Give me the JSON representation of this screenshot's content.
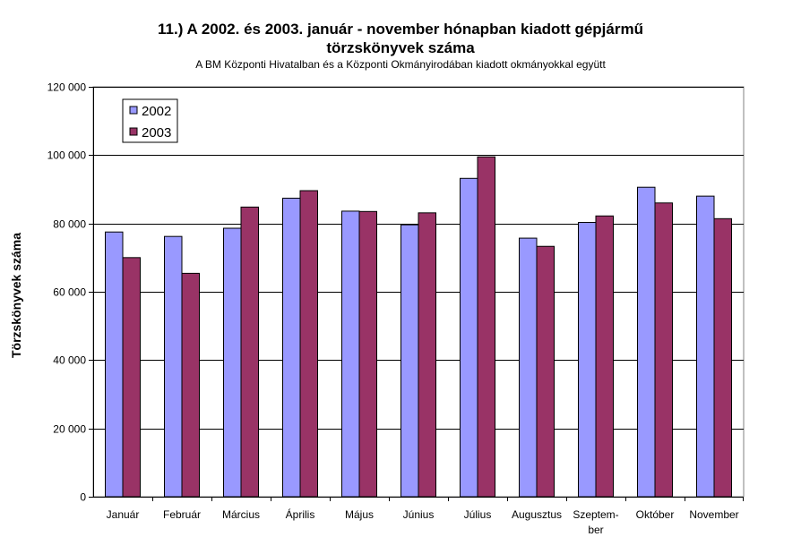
{
  "chart_data": {
    "type": "bar",
    "title_line1": "11.) A 2002. és  2003. január - november hónapban kiadott gépjármű",
    "title_line2": "törzskönyvek száma",
    "subtitle": "A BM Központi Hivatalban és a Központi Okmányirodában kiadott okmányokkal együtt",
    "ylabel": "Törzskönyvek száma",
    "xlabel": "",
    "ylim": [
      0,
      120000
    ],
    "yticks": [
      0,
      20000,
      40000,
      60000,
      80000,
      100000,
      120000
    ],
    "ytick_labels": [
      "0",
      "20 000",
      "40 000",
      "60 000",
      "80 000",
      "100 000",
      "120 000"
    ],
    "categories": [
      "Január",
      "Február",
      "Március",
      "Április",
      "Május",
      "Június",
      "Július",
      "Augusztus",
      "Szeptem-ber",
      "Október",
      "November"
    ],
    "category_lines": [
      [
        "Január"
      ],
      [
        "Február"
      ],
      [
        "Március"
      ],
      [
        "Április"
      ],
      [
        "Május"
      ],
      [
        "Június"
      ],
      [
        "Július"
      ],
      [
        "Augusztus"
      ],
      [
        "Szeptem-",
        "ber"
      ],
      [
        "Október"
      ],
      [
        "November"
      ]
    ],
    "series": [
      {
        "name": "2002",
        "color": "#9999ff",
        "values": [
          77500,
          76200,
          78600,
          87400,
          83600,
          79600,
          93200,
          75700,
          80300,
          90600,
          88000
        ]
      },
      {
        "name": "2003",
        "color": "#993366",
        "values": [
          70000,
          65400,
          84800,
          89600,
          83500,
          83100,
          99500,
          73300,
          82200,
          86000,
          81400
        ]
      }
    ],
    "grid": true,
    "legend_position": "top-left",
    "gridline_color": "#000000",
    "plot_border_color": "#808080"
  }
}
